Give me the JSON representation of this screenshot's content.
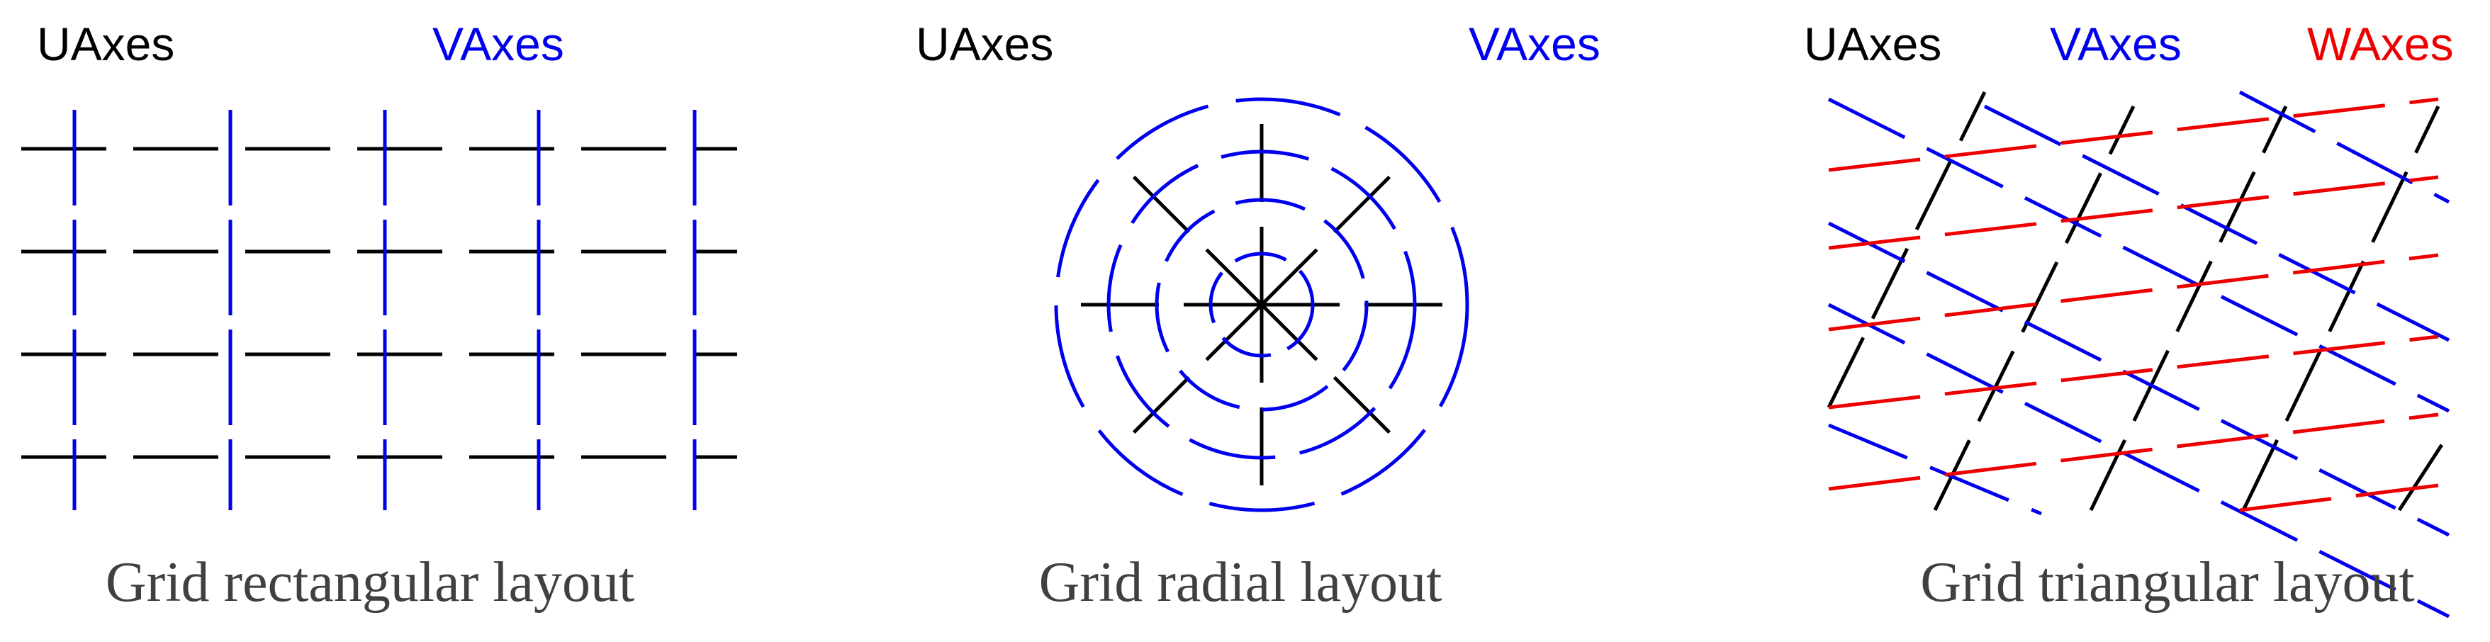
{
  "colors": {
    "u_axes": "#000000",
    "v_axes": "#0000ee",
    "w_axes": "#ee0000",
    "caption": "#404040"
  },
  "panels": [
    {
      "id": "rectangular",
      "labels": {
        "u": "UAxes",
        "v": "VAxes"
      },
      "caption": "Grid rectangular layout"
    },
    {
      "id": "radial",
      "labels": {
        "u": "UAxes",
        "v": "VAxes"
      },
      "caption": "Grid radial layout"
    },
    {
      "id": "triangular",
      "labels": {
        "u": "UAxes",
        "v": "VAxes",
        "w": "WAxes"
      },
      "caption": "Grid triangular layout"
    }
  ]
}
